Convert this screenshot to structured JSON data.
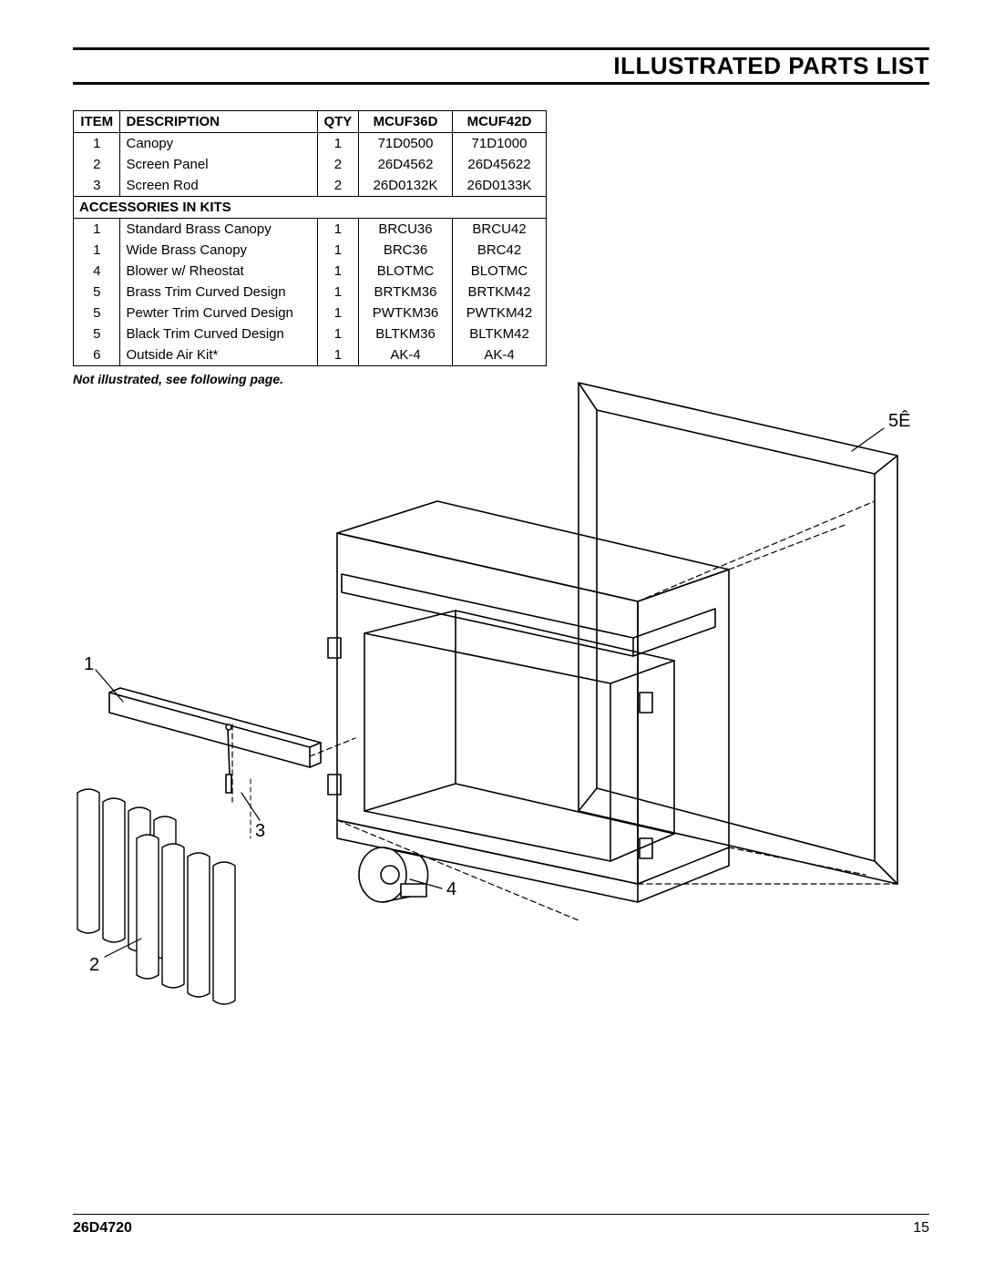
{
  "page": {
    "title": "ILLUSTRATED PARTS LIST",
    "footnote": "Not illustrated, see following page.",
    "doc_number": "26D4720",
    "page_number": "15"
  },
  "table": {
    "headers": {
      "item": "ITEM",
      "description": "DESCRIPTION",
      "qty": "QTY",
      "model_a": "MCUF36D",
      "model_b": "MCUF42D"
    },
    "main_rows": [
      {
        "item": "1",
        "description": "Canopy",
        "qty": "1",
        "a": "71D0500",
        "b": "71D1000"
      },
      {
        "item": "2",
        "description": "Screen Panel",
        "qty": "2",
        "a": "26D4562",
        "b": "26D45622"
      },
      {
        "item": "3",
        "description": "Screen Rod",
        "qty": "2",
        "a": "26D0132K",
        "b": "26D0133K"
      }
    ],
    "section_label": "ACCESSORIES IN KITS",
    "accessory_rows": [
      {
        "item": "1",
        "description": "Standard Brass Canopy",
        "qty": "1",
        "a": "BRCU36",
        "b": "BRCU42"
      },
      {
        "item": "1",
        "description": "Wide Brass Canopy",
        "qty": "1",
        "a": "BRC36",
        "b": "BRC42"
      },
      {
        "item": "4",
        "description": "Blower w/ Rheostat",
        "qty": "1",
        "a": "BLOTMC",
        "b": "BLOTMC"
      },
      {
        "item": "5",
        "description": "Brass Trim Curved Design",
        "qty": "1",
        "a": "BRTKM36",
        "b": "BRTKM42"
      },
      {
        "item": "5",
        "description": "Pewter Trim Curved Design",
        "qty": "1",
        "a": "PWTKM36",
        "b": "PWTKM42"
      },
      {
        "item": "5",
        "description": "Black Trim Curved Design",
        "qty": "1",
        "a": "BLTKM36",
        "b": "BLTKM42"
      },
      {
        "item": "6",
        "description": "Outside Air Kit*",
        "qty": "1",
        "a": "AK-4",
        "b": "AK-4"
      }
    ]
  },
  "diagram": {
    "callouts": {
      "c1": "1",
      "c2": "2",
      "c3": "3",
      "c4": "4",
      "c5": "5Ê"
    },
    "stroke": "#000000",
    "thin": 1.2,
    "med": 1.6,
    "dash": "6,4"
  }
}
